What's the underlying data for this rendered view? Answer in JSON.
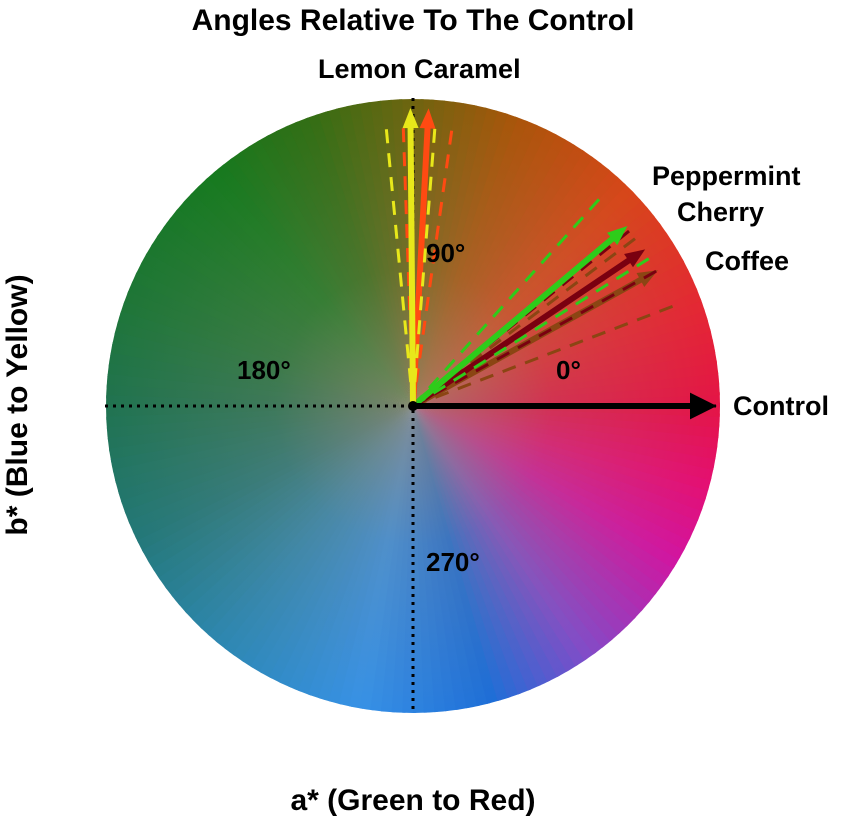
{
  "title": "Angles Relative To The Control",
  "xlabel": "a* (Green to Red)",
  "ylabel": "b* (Blue to Yellow)",
  "labels": {
    "lemon_caramel": "Lemon Caramel",
    "peppermint": "Peppermint",
    "cherry": "Cherry",
    "coffee": "Coffee",
    "control": "Control"
  },
  "angles": {
    "a0": "0°",
    "a90": "90°",
    "a180": "180°",
    "a270": "270°"
  },
  "vectors": [
    {
      "name": "Control",
      "angle_deg": 0,
      "color": "#000000"
    },
    {
      "name": "Coffee",
      "angle_deg": 29,
      "color": "#8b4513",
      "spread_deg": 8
    },
    {
      "name": "Cherry",
      "angle_deg": 34,
      "color": "#7a0010",
      "spread_deg": 5
    },
    {
      "name": "Peppermint",
      "angle_deg": 40,
      "color": "#2ecc1a",
      "spread_deg": 8
    },
    {
      "name": "Caramel",
      "angle_deg": 87,
      "color": "#ff4a12",
      "spread_deg": 5
    },
    {
      "name": "Lemon",
      "angle_deg": 90.5,
      "color": "#e8e81a",
      "spread_deg": 5
    }
  ]
}
